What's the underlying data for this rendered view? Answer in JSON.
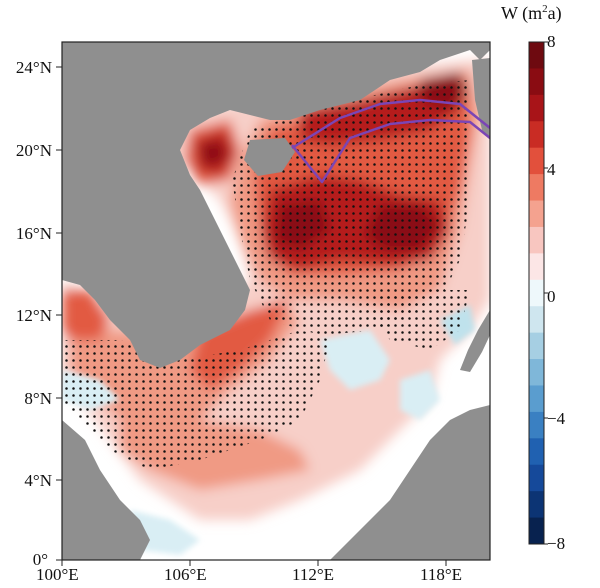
{
  "map": {
    "lat_labels": [
      "24°N",
      "20°N",
      "16°N",
      "12°N",
      "8°N",
      "4°N",
      "0°"
    ],
    "lon_labels": [
      "100°E",
      "106°E",
      "112°E",
      "118°E"
    ],
    "extent": {
      "lon": [
        100,
        120
      ],
      "lat": [
        0,
        25
      ]
    }
  },
  "colorbar": {
    "title_prefix": "W (m",
    "title_sup": "2",
    "title_suffix": "a)",
    "ticks": [
      "8",
      "4",
      "0",
      "−4",
      "−8"
    ],
    "range": [
      -8,
      8
    ],
    "levels": 16,
    "colors": [
      "#08224f",
      "#0c3474",
      "#15499a",
      "#2061b1",
      "#3a80c2",
      "#5a9dcf",
      "#7fb7d9",
      "#a6cfe3",
      "#cfe6ef",
      "#eef8fb",
      "#fce6e6",
      "#f8c6c0",
      "#f4a28f",
      "#ee7a62",
      "#e2503c",
      "#c92c24",
      "#a81418",
      "#8a0c12",
      "#6e0a10"
    ]
  },
  "colors": {
    "land": "#8f8f8f",
    "contour": "#7b45b5",
    "stipple": "#111111"
  }
}
